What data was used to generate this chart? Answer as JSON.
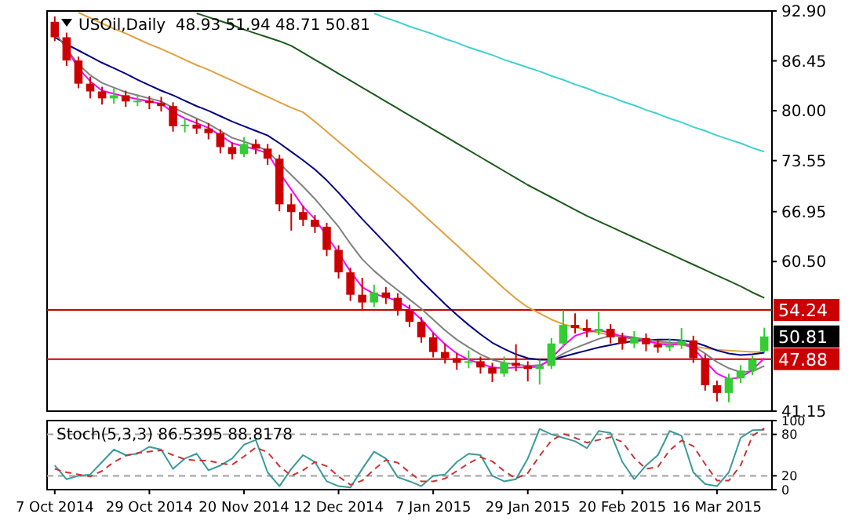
{
  "chart_data": [
    {
      "type": "candlestick",
      "title": "USOil,Daily  48.93 51.94 48.71 50.81",
      "categories": [
        null,
        null,
        null,
        null,
        null,
        null,
        null,
        null,
        null,
        null,
        null,
        null,
        null,
        null,
        null,
        null,
        null,
        null,
        null,
        null,
        null,
        null,
        null,
        null,
        null,
        null,
        null,
        null,
        null,
        null,
        null,
        null,
        null,
        null,
        null,
        null,
        null,
        null,
        null,
        null,
        null,
        null,
        null,
        null,
        null,
        null,
        null,
        null,
        null,
        null,
        null,
        null,
        null,
        null,
        null,
        null,
        null,
        null,
        null,
        null,
        null
      ],
      "ohlc": [
        [
          91.5,
          92.2,
          89.0,
          89.5
        ],
        [
          89.5,
          90.1,
          85.8,
          86.5
        ],
        [
          86.5,
          87.0,
          82.9,
          83.5
        ],
        [
          83.5,
          84.4,
          81.6,
          82.5
        ],
        [
          82.5,
          83.1,
          80.8,
          81.6
        ],
        [
          81.6,
          82.9,
          80.9,
          82.0
        ],
        [
          82.0,
          82.6,
          80.5,
          81.2
        ],
        [
          81.2,
          82.1,
          80.6,
          81.3
        ],
        [
          81.3,
          81.9,
          80.2,
          81.0
        ],
        [
          81.0,
          81.8,
          79.9,
          80.6
        ],
        [
          80.6,
          81.1,
          77.3,
          78.0
        ],
        [
          78.0,
          79.0,
          77.2,
          78.2
        ],
        [
          78.2,
          78.9,
          77.0,
          77.7
        ],
        [
          77.7,
          78.4,
          76.3,
          77.1
        ],
        [
          77.1,
          77.6,
          74.5,
          75.3
        ],
        [
          75.3,
          75.9,
          73.7,
          74.4
        ],
        [
          74.4,
          76.6,
          74.0,
          75.7
        ],
        [
          75.7,
          76.3,
          74.4,
          75.1
        ],
        [
          75.1,
          75.7,
          73.0,
          73.8
        ],
        [
          73.8,
          74.3,
          67.0,
          67.9
        ],
        [
          67.9,
          69.3,
          64.5,
          66.9
        ],
        [
          66.9,
          67.7,
          65.1,
          65.9
        ],
        [
          65.9,
          66.5,
          64.2,
          65.0
        ],
        [
          65.0,
          65.5,
          61.2,
          62.0
        ],
        [
          62.0,
          62.6,
          58.3,
          59.1
        ],
        [
          59.1,
          59.7,
          55.4,
          56.2
        ],
        [
          56.2,
          58.4,
          54.2,
          55.2
        ],
        [
          55.2,
          57.5,
          54.6,
          56.5
        ],
        [
          56.5,
          57.2,
          55.0,
          55.8
        ],
        [
          55.8,
          56.4,
          53.5,
          54.2
        ],
        [
          54.2,
          54.9,
          52.0,
          52.7
        ],
        [
          52.7,
          53.3,
          50.0,
          50.7
        ],
        [
          50.7,
          51.3,
          48.1,
          48.8
        ],
        [
          48.8,
          49.9,
          47.3,
          48.0
        ],
        [
          48.0,
          48.7,
          46.5,
          47.4
        ],
        [
          47.4,
          49.0,
          46.7,
          47.6
        ],
        [
          47.6,
          48.2,
          46.0,
          46.8
        ],
        [
          46.8,
          47.4,
          44.9,
          46.0
        ],
        [
          46.0,
          48.2,
          45.6,
          47.4
        ],
        [
          47.4,
          49.8,
          46.3,
          47.0
        ],
        [
          47.0,
          47.6,
          45.0,
          46.6
        ],
        [
          46.6,
          47.8,
          44.6,
          47.0
        ],
        [
          47.0,
          50.6,
          46.6,
          49.9
        ],
        [
          49.9,
          54.2,
          49.4,
          52.3
        ],
        [
          52.3,
          53.8,
          51.2,
          51.9
        ],
        [
          51.9,
          53.0,
          50.7,
          51.5
        ],
        [
          51.5,
          54.0,
          51.0,
          51.8
        ],
        [
          51.8,
          52.4,
          49.9,
          50.7
        ],
        [
          50.7,
          51.3,
          49.1,
          49.9
        ],
        [
          49.9,
          51.5,
          49.3,
          50.6
        ],
        [
          50.6,
          51.2,
          48.9,
          49.8
        ],
        [
          49.8,
          50.4,
          48.7,
          49.4
        ],
        [
          49.4,
          50.5,
          48.9,
          49.7
        ],
        [
          49.7,
          51.9,
          49.2,
          50.3
        ],
        [
          50.3,
          50.9,
          47.4,
          48.0
        ],
        [
          48.0,
          48.5,
          43.8,
          44.5
        ],
        [
          44.5,
          45.1,
          42.4,
          43.5
        ],
        [
          43.5,
          46.0,
          42.3,
          45.4
        ],
        [
          45.4,
          47.1,
          44.8,
          46.4
        ],
        [
          46.4,
          48.3,
          45.8,
          47.8
        ],
        [
          48.93,
          51.94,
          48.71,
          50.81
        ]
      ],
      "colors": [
        "#cc0000",
        "#cc0000",
        "#cc0000",
        "#cc0000",
        "#cc0000",
        "#33cc33",
        "#cc0000",
        "#33cc33",
        "#cc0000",
        "#cc0000",
        "#cc0000",
        "#33cc33",
        "#cc0000",
        "#cc0000",
        "#cc0000",
        "#cc0000",
        "#33cc33",
        "#cc0000",
        "#cc0000",
        "#cc0000",
        "#cc0000",
        "#cc0000",
        "#cc0000",
        "#cc0000",
        "#cc0000",
        "#cc0000",
        "#cc0000",
        "#33cc33",
        "#cc0000",
        "#cc0000",
        "#cc0000",
        "#cc0000",
        "#cc0000",
        "#cc0000",
        "#cc0000",
        "#33cc33",
        "#cc0000",
        "#cc0000",
        "#33cc33",
        "#cc0000",
        "#cc0000",
        "#33cc33",
        "#33cc33",
        "#33cc33",
        "#cc0000",
        "#cc0000",
        "#33cc33",
        "#cc0000",
        "#cc0000",
        "#33cc33",
        "#cc0000",
        "#cc0000",
        "#33cc33",
        "#33cc33",
        "#cc0000",
        "#cc0000",
        "#cc0000",
        "#33cc33",
        "#33cc33",
        "#33cc33",
        "#33cc33"
      ],
      "series": [
        {
          "type": "line",
          "color": "#40d0d0",
          "values": [
            null,
            null,
            null,
            null,
            null,
            null,
            null,
            null,
            null,
            null,
            null,
            null,
            null,
            null,
            null,
            null,
            null,
            null,
            null,
            null,
            null,
            null,
            null,
            null,
            null,
            null,
            null,
            92.6,
            92.0,
            91.5,
            90.9,
            90.4,
            89.9,
            89.3,
            88.8,
            88.2,
            87.7,
            87.2,
            86.6,
            86.1,
            85.6,
            85.1,
            84.5,
            84.0,
            83.4,
            82.9,
            82.3,
            81.8,
            81.2,
            80.7,
            80.1,
            79.6,
            79.0,
            78.5,
            77.9,
            77.4,
            76.8,
            76.3,
            75.8,
            75.2,
            74.7
          ]
        },
        {
          "type": "line",
          "color": "#1a5a1a",
          "values": [
            null,
            null,
            null,
            null,
            null,
            null,
            null,
            null,
            null,
            null,
            null,
            null,
            92.6,
            92.1,
            91.6,
            91.1,
            90.5,
            90.0,
            89.5,
            89.0,
            88.4,
            87.5,
            86.6,
            85.7,
            84.8,
            83.9,
            83.0,
            82.1,
            81.2,
            80.3,
            79.4,
            78.5,
            77.6,
            76.7,
            75.8,
            74.9,
            74.0,
            73.1,
            72.2,
            71.3,
            70.4,
            69.6,
            68.8,
            68.0,
            67.2,
            66.4,
            65.7,
            65.0,
            64.3,
            63.6,
            62.9,
            62.2,
            61.5,
            60.8,
            60.1,
            59.4,
            58.7,
            58.0,
            57.3,
            56.5,
            55.8
          ]
        },
        {
          "type": "line",
          "color": "#e0a040",
          "values": [
            null,
            null,
            92.7,
            92.0,
            91.3,
            90.6,
            90.0,
            89.3,
            88.6,
            88.0,
            87.3,
            86.6,
            85.9,
            85.3,
            84.6,
            83.9,
            83.2,
            82.5,
            81.8,
            81.1,
            80.4,
            79.8,
            78.6,
            77.3,
            76.0,
            74.7,
            73.4,
            72.1,
            70.8,
            69.5,
            68.2,
            66.8,
            65.4,
            64.0,
            62.6,
            61.2,
            59.8,
            58.4,
            57.0,
            55.7,
            54.6,
            53.8,
            53.0,
            52.4,
            52.0,
            51.6,
            51.3,
            51.0,
            50.7,
            50.5,
            50.3,
            50.1,
            49.9,
            49.7,
            49.5,
            49.3,
            49.1,
            49.0,
            48.9,
            48.8,
            48.8
          ]
        },
        {
          "type": "line",
          "color": "#000080",
          "values": [
            89.5,
            88.6,
            87.8,
            87.0,
            86.2,
            85.5,
            84.8,
            84.0,
            83.3,
            82.6,
            82.0,
            81.3,
            80.6,
            80.0,
            79.3,
            78.6,
            78.0,
            77.4,
            76.8,
            75.8,
            74.7,
            73.6,
            72.4,
            71.0,
            69.4,
            67.7,
            66.0,
            64.4,
            62.8,
            61.2,
            59.6,
            58.0,
            56.5,
            55.0,
            53.6,
            52.3,
            51.1,
            50.0,
            49.2,
            48.5,
            48.0,
            47.8,
            47.8,
            48.2,
            48.6,
            49.0,
            49.4,
            49.7,
            50.0,
            50.2,
            50.3,
            50.4,
            50.4,
            50.3,
            50.1,
            49.6,
            49.0,
            48.6,
            48.4,
            48.5,
            48.7
          ]
        },
        {
          "type": "line",
          "color": "#808080",
          "values": [
            90.2,
            88.0,
            86.0,
            84.6,
            83.6,
            83.0,
            82.4,
            82.0,
            81.6,
            81.2,
            80.4,
            79.7,
            79.0,
            78.3,
            77.4,
            76.5,
            76.0,
            75.5,
            74.8,
            73.2,
            71.7,
            70.2,
            68.6,
            66.8,
            65.0,
            62.8,
            60.8,
            59.3,
            58.0,
            56.8,
            55.6,
            54.4,
            53.0,
            51.6,
            50.4,
            49.4,
            48.5,
            47.8,
            47.4,
            47.2,
            47.0,
            47.1,
            47.7,
            48.6,
            49.3,
            49.9,
            50.5,
            50.9,
            50.9,
            50.7,
            50.4,
            50.2,
            50.0,
            50.0,
            49.6,
            48.6,
            47.5,
            46.7,
            46.2,
            46.3,
            47.0
          ]
        },
        {
          "type": "line",
          "color": "#ff00ff",
          "values": [
            null,
            88.0,
            85.5,
            83.8,
            82.6,
            82.2,
            81.8,
            81.5,
            81.2,
            80.9,
            79.8,
            79.0,
            78.4,
            77.8,
            76.8,
            75.8,
            75.4,
            75.0,
            74.5,
            72.0,
            69.8,
            67.6,
            66.0,
            63.8,
            61.6,
            59.2,
            57.2,
            56.3,
            55.9,
            55.4,
            54.4,
            53.0,
            51.3,
            49.8,
            48.6,
            47.8,
            47.3,
            46.8,
            46.7,
            46.8,
            46.8,
            46.9,
            48.0,
            49.6,
            50.9,
            51.4,
            51.6,
            51.3,
            50.8,
            50.5,
            50.2,
            49.9,
            49.7,
            49.9,
            49.3,
            47.6,
            46.0,
            45.3,
            45.5,
            46.5,
            48.0
          ]
        }
      ],
      "ylim": [
        41.15,
        92.9
      ],
      "yticks": [
        {
          "value": 92.9,
          "label": "92.90"
        },
        86.45,
        {
          "value": 80,
          "label": "80.00"
        },
        73.55,
        66.95,
        {
          "value": 60.5,
          "label": "60.50"
        },
        41.15
      ],
      "ref_lines": [
        {
          "axis": "y",
          "value": 54.24,
          "label": "54.24",
          "color": "#cc0000"
        },
        {
          "axis": "y",
          "value": 47.88,
          "label": "47.88",
          "color": "#cc0000"
        }
      ],
      "annotations": [
        "50.81"
      ]
    },
    {
      "type": "line",
      "title": "Stoch(5,3,3) 86.5395 88.8178",
      "categories": [
        "7 Oct 2014",
        null,
        null,
        null,
        null,
        null,
        null,
        null,
        "29 Oct 2014",
        null,
        null,
        null,
        null,
        null,
        null,
        null,
        "20 Nov 2014",
        null,
        null,
        null,
        null,
        null,
        null,
        null,
        "12 Dec 2014",
        null,
        null,
        null,
        null,
        null,
        null,
        null,
        "7 Jan 2015",
        null,
        null,
        null,
        null,
        null,
        null,
        null,
        "29 Jan 2015",
        null,
        null,
        null,
        null,
        null,
        null,
        null,
        "20 Feb 2015",
        null,
        null,
        null,
        null,
        null,
        null,
        null,
        "16 Mar 2015",
        null,
        null,
        null,
        null
      ],
      "series": [
        {
          "color": "#3a9a9a",
          "line_style": "solid",
          "values": [
            35,
            15,
            20,
            22,
            40,
            58,
            50,
            52,
            62,
            58,
            30,
            45,
            52,
            28,
            35,
            45,
            65,
            72,
            25,
            5,
            30,
            50,
            40,
            12,
            5,
            3,
            30,
            55,
            45,
            18,
            12,
            5,
            20,
            22,
            40,
            52,
            50,
            20,
            12,
            15,
            45,
            88,
            80,
            75,
            70,
            60,
            85,
            82,
            40,
            15,
            35,
            50,
            85,
            78,
            25,
            8,
            5,
            25,
            75,
            86,
            86.5395
          ]
        },
        {
          "color": "#cc3333",
          "line_style": "dashed",
          "values": [
            30,
            25,
            22,
            19,
            27,
            40,
            49,
            53,
            55,
            57,
            50,
            44,
            42,
            42,
            38,
            36,
            48,
            61,
            54,
            34,
            20,
            28,
            40,
            34,
            19,
            7,
            13,
            29,
            43,
            39,
            25,
            12,
            12,
            16,
            27,
            38,
            47,
            41,
            27,
            16,
            24,
            49,
            71,
            81,
            75,
            68,
            72,
            76,
            69,
            46,
            30,
            33,
            57,
            71,
            63,
            37,
            13,
            13,
            35,
            78,
            88.8178
          ]
        }
      ],
      "ylim": [
        0,
        100
      ],
      "yticks": [
        0,
        20,
        80,
        100
      ],
      "ref_lines": [
        {
          "axis": "y",
          "value": 20,
          "color": "#a0a0a0",
          "line_style": "dashed"
        },
        {
          "axis": "y",
          "value": 80,
          "color": "#a0a0a0",
          "line_style": "dashed"
        }
      ]
    }
  ]
}
